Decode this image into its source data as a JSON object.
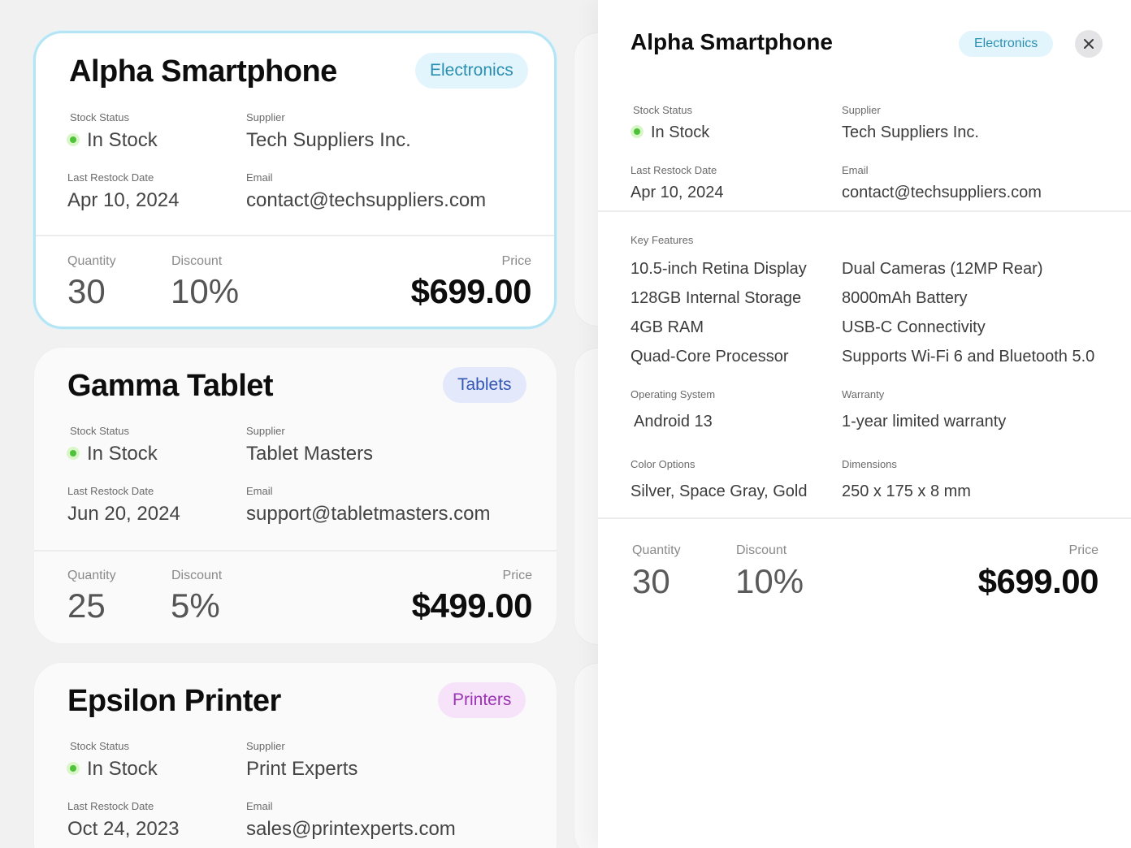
{
  "cards": [
    {
      "title": "Alpha Smartphone",
      "category": "Electronics",
      "stock_status_label": "Stock Status",
      "stock_status": "In Stock",
      "supplier_label": "Supplier",
      "supplier": "Tech Suppliers Inc.",
      "restock_label": "Last Restock Date",
      "restock_date": "Apr 10, 2024",
      "email_label": "Email",
      "email": "contact@techsuppliers.com",
      "quantity_label": "Quantity",
      "quantity": "30",
      "discount_label": "Discount",
      "discount": "10%",
      "price_label": "Price",
      "price": "$699.00"
    },
    {
      "title": "Gamma Tablet",
      "category": "Tablets",
      "stock_status_label": "Stock Status",
      "stock_status": "In Stock",
      "supplier_label": "Supplier",
      "supplier": "Tablet Masters",
      "restock_label": "Last Restock Date",
      "restock_date": "Jun 20, 2024",
      "email_label": "Email",
      "email": "support@tabletmasters.com",
      "quantity_label": "Quantity",
      "quantity": "25",
      "discount_label": "Discount",
      "discount": "5%",
      "price_label": "Price",
      "price": "$499.00"
    },
    {
      "title": "Epsilon Printer",
      "category": "Printers",
      "stock_status_label": "Stock Status",
      "stock_status": "In Stock",
      "supplier_label": "Supplier",
      "supplier": "Print Experts",
      "restock_label": "Last Restock Date",
      "restock_date": "Oct 24, 2023",
      "email_label": "Email",
      "email": "sales@printexperts.com"
    }
  ],
  "detail": {
    "title": "Alpha Smartphone",
    "category": "Electronics",
    "close_icon": "close-icon",
    "stock_status_label": "Stock Status",
    "stock_status": "In Stock",
    "supplier_label": "Supplier",
    "supplier": "Tech Suppliers Inc.",
    "restock_label": "Last Restock Date",
    "restock_date": "Apr 10, 2024",
    "email_label": "Email",
    "email": "contact@techsuppliers.com",
    "features_label": "Key Features",
    "features": [
      "10.5-inch Retina Display",
      "Dual Cameras (12MP Rear)",
      "128GB Internal Storage",
      "8000mAh Battery",
      "4GB RAM",
      "USB-C Connectivity",
      "Quad-Core Processor",
      "Supports Wi-Fi 6 and Bluetooth 5.0"
    ],
    "os_label": "Operating System",
    "os": "Android 13",
    "warranty_label": "Warranty",
    "warranty": "1-year limited warranty",
    "colors_label": "Color Options",
    "colors": "Silver, Space Gray, Gold",
    "dimensions_label": "Dimensions",
    "dimensions": "250 x 175 x 8 mm",
    "quantity_label": "Quantity",
    "quantity": "30",
    "discount_label": "Discount",
    "discount": "10%",
    "price_label": "Price",
    "price": "$699.00"
  },
  "colors": {
    "selected_border": "#b5e5f5",
    "in_stock_dot": "#4fc23a",
    "electronics_badge": "#2a8fb0",
    "tablets_badge": "#3557b5",
    "printers_badge": "#9b34b3"
  }
}
